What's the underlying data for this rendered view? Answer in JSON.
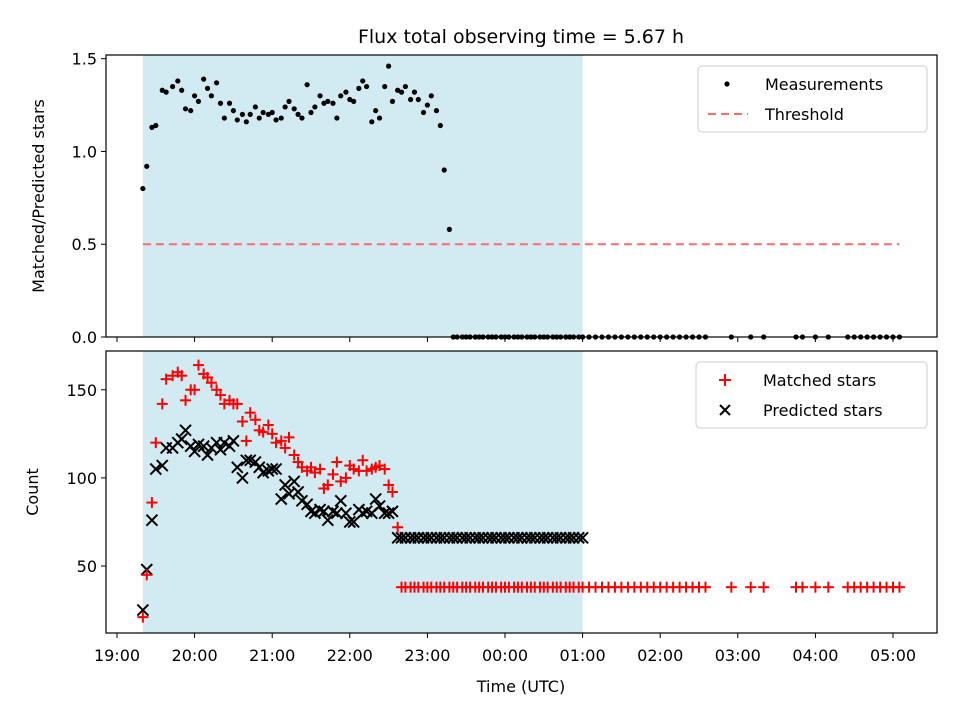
{
  "chart_data": {
    "type": "scatter",
    "title": "Flux total observing time = 5.67 h",
    "xlabel": "Time (UTC)",
    "x_tick_labels": [
      "19:00",
      "20:00",
      "21:00",
      "22:00",
      "23:00",
      "00:00",
      "01:00",
      "02:00",
      "03:00",
      "04:00",
      "05:00"
    ],
    "shaded_interval": {
      "start": "19:20",
      "end": "01:00",
      "color": "#add8e6"
    },
    "top_panel": {
      "ylabel": "Matched/Predicted stars",
      "ylim": [
        0,
        1.52
      ],
      "yticks": [
        "0.0",
        "0.5",
        "1.0",
        "1.5"
      ],
      "legend": {
        "placement": "top-right",
        "entries": [
          "Measurements",
          "Threshold"
        ]
      },
      "threshold": {
        "name": "Threshold",
        "value": 0.5,
        "x_start": "19:20",
        "x_end": "05:05",
        "color": "#ff6b6b",
        "style": "dashed"
      },
      "measurements": {
        "name": "Measurements",
        "color": "#000000",
        "x": [
          "19:20",
          "19:23",
          "19:27",
          "19:30",
          "19:35",
          "19:38",
          "19:43",
          "19:47",
          "19:50",
          "19:53",
          "19:57",
          "20:00",
          "20:03",
          "20:07",
          "20:10",
          "20:13",
          "20:17",
          "20:20",
          "20:23",
          "20:27",
          "20:30",
          "20:33",
          "20:37",
          "20:40",
          "20:43",
          "20:47",
          "20:50",
          "20:53",
          "20:57",
          "21:00",
          "21:03",
          "21:07",
          "21:10",
          "21:13",
          "21:17",
          "21:20",
          "21:23",
          "21:27",
          "21:30",
          "21:33",
          "21:37",
          "21:40",
          "21:43",
          "21:47",
          "21:50",
          "21:53",
          "21:57",
          "22:00",
          "22:03",
          "22:07",
          "22:10",
          "22:13",
          "22:17",
          "22:20",
          "22:23",
          "22:27",
          "22:30",
          "22:33",
          "22:37",
          "22:40",
          "22:43",
          "22:47",
          "22:50",
          "22:53",
          "22:57",
          "23:00",
          "23:03",
          "23:07",
          "23:10",
          "23:13",
          "23:17",
          "23:20",
          "23:23",
          "23:27",
          "23:30",
          "23:33",
          "23:37",
          "23:40",
          "23:43",
          "23:47",
          "23:50",
          "23:53",
          "23:57",
          "00:00",
          "00:03",
          "00:07",
          "00:10",
          "00:13",
          "00:17",
          "00:20",
          "00:23",
          "00:27",
          "00:30",
          "00:33",
          "00:37",
          "00:40",
          "00:43",
          "00:47",
          "00:50",
          "00:53",
          "00:57",
          "01:00"
        ],
        "y": [
          0.8,
          0.92,
          1.13,
          1.14,
          1.33,
          1.32,
          1.35,
          1.38,
          1.33,
          1.23,
          1.22,
          1.3,
          1.27,
          1.39,
          1.34,
          1.3,
          1.37,
          1.26,
          1.18,
          1.26,
          1.22,
          1.17,
          1.2,
          1.16,
          1.2,
          1.24,
          1.18,
          1.21,
          1.2,
          1.21,
          1.17,
          1.18,
          1.24,
          1.27,
          1.23,
          1.2,
          1.18,
          1.36,
          1.21,
          1.24,
          1.3,
          1.26,
          1.27,
          1.26,
          1.18,
          1.3,
          1.32,
          1.28,
          1.27,
          1.34,
          1.38,
          1.35,
          1.16,
          1.22,
          1.18,
          1.35,
          1.46,
          1.27,
          1.33,
          1.32,
          1.35,
          1.28,
          1.32,
          1.28,
          1.21,
          1.25,
          1.3,
          1.22,
          1.14,
          0.9,
          0.58,
          0.0,
          0.0,
          0.0,
          0.0,
          0.0,
          0.0,
          0.0,
          0.0,
          0.0,
          0.0,
          0.0,
          0.0,
          0.0,
          0.0,
          0.0,
          0.0,
          0.0,
          0.0,
          0.0,
          0.0,
          0.0,
          0.0,
          0.0,
          0.0,
          0.0,
          0.0,
          0.0,
          0.0,
          0.0,
          0.0,
          0.0
        ]
      }
    },
    "bottom_panel": {
      "ylabel": "Count",
      "ylim": [
        12,
        172
      ],
      "yticks": [
        "50",
        "100",
        "150"
      ],
      "legend": {
        "placement": "top-right",
        "entries": [
          "Matched stars",
          "Predicted stars"
        ]
      },
      "series": [
        {
          "name": "Matched stars",
          "marker": "+",
          "color": "#ff0000",
          "x": [
            "19:20",
            "19:23",
            "19:27",
            "19:30",
            "19:35",
            "19:38",
            "19:43",
            "19:47",
            "19:50",
            "19:53",
            "19:57",
            "20:00",
            "20:03",
            "20:07",
            "20:10",
            "20:13",
            "20:17",
            "20:20",
            "20:23",
            "20:27",
            "20:30",
            "20:33",
            "20:37",
            "20:40",
            "20:43",
            "20:47",
            "20:50",
            "20:53",
            "20:57",
            "21:00",
            "21:03",
            "21:07",
            "21:10",
            "21:13",
            "21:17",
            "21:20",
            "21:23",
            "21:27",
            "21:30",
            "21:33",
            "21:37",
            "21:40",
            "21:43",
            "21:47",
            "21:50",
            "21:53",
            "21:57",
            "22:00",
            "22:03",
            "22:07",
            "22:10",
            "22:13",
            "22:17",
            "22:20",
            "22:23",
            "22:27",
            "22:30",
            "22:33",
            "22:37",
            "22:40",
            "22:43",
            "22:47",
            "22:50",
            "22:53",
            "22:57",
            "23:00",
            "23:03",
            "23:07",
            "23:10",
            "23:13",
            "23:17",
            "23:20",
            "23:23",
            "23:27",
            "23:30",
            "23:33",
            "23:37",
            "23:40",
            "23:43",
            "23:47",
            "23:50",
            "23:53",
            "23:57",
            "00:00",
            "00:03",
            "00:07",
            "00:10",
            "00:13",
            "00:17",
            "00:20",
            "00:23",
            "00:27",
            "00:30",
            "00:33",
            "00:37",
            "00:40",
            "00:43",
            "00:47",
            "00:50",
            "00:53",
            "00:57",
            "01:00"
          ],
          "y": [
            21,
            45,
            86,
            120,
            142,
            156,
            158,
            160,
            158,
            144,
            150,
            150,
            164,
            159,
            157,
            154,
            150,
            147,
            142,
            144,
            142,
            142,
            132,
            121,
            137,
            133,
            127,
            126,
            130,
            125,
            120,
            121,
            117,
            123,
            113,
            109,
            106,
            104,
            106,
            103,
            105,
            94,
            96,
            102,
            109,
            98,
            100,
            107,
            105,
            104,
            110,
            104,
            105,
            106,
            107,
            105,
            96,
            92,
            72,
            38,
            38,
            38,
            38,
            38,
            38,
            38,
            38,
            38,
            38,
            38,
            38,
            38,
            38,
            38,
            38,
            38,
            38,
            38,
            38,
            38,
            38,
            38,
            38,
            38,
            38,
            38,
            38,
            38,
            38,
            38,
            38,
            38,
            38,
            38,
            38,
            38,
            38,
            38,
            38,
            38,
            38,
            38
          ]
        },
        {
          "name": "Predicted stars",
          "marker": "x",
          "color": "#000000",
          "x": [
            "19:20",
            "19:23",
            "19:27",
            "19:30",
            "19:35",
            "19:38",
            "19:43",
            "19:47",
            "19:50",
            "19:53",
            "19:57",
            "20:00",
            "20:03",
            "20:07",
            "20:10",
            "20:13",
            "20:17",
            "20:20",
            "20:23",
            "20:27",
            "20:30",
            "20:33",
            "20:37",
            "20:40",
            "20:43",
            "20:47",
            "20:50",
            "20:53",
            "20:57",
            "21:00",
            "21:03",
            "21:07",
            "21:10",
            "21:13",
            "21:17",
            "21:20",
            "21:23",
            "21:27",
            "21:30",
            "21:33",
            "21:37",
            "21:40",
            "21:43",
            "21:47",
            "21:50",
            "21:53",
            "21:57",
            "22:00",
            "22:03",
            "22:07",
            "22:10",
            "22:13",
            "22:17",
            "22:20",
            "22:23",
            "22:27",
            "22:30",
            "22:33",
            "22:37",
            "22:40",
            "22:43",
            "22:47",
            "22:50",
            "22:53",
            "22:57",
            "23:00",
            "23:03",
            "23:07",
            "23:10",
            "23:13",
            "23:17",
            "23:20",
            "23:23",
            "23:27",
            "23:30",
            "23:33",
            "23:37",
            "23:40",
            "23:43",
            "23:47",
            "23:50",
            "23:53",
            "23:57",
            "00:00",
            "00:03",
            "00:07",
            "00:10",
            "00:13",
            "00:17",
            "00:20",
            "00:23",
            "00:27",
            "00:30",
            "00:33",
            "00:37",
            "00:40",
            "00:43",
            "00:47",
            "00:50",
            "00:53",
            "00:57",
            "01:00"
          ],
          "y": [
            25,
            48,
            76,
            105,
            107,
            117,
            117,
            120,
            122,
            127,
            118,
            115,
            119,
            118,
            113,
            117,
            120,
            116,
            120,
            118,
            121,
            106,
            100,
            110,
            110,
            109,
            106,
            103,
            104,
            105,
            105,
            88,
            96,
            91,
            98,
            92,
            87,
            85,
            81,
            80,
            82,
            81,
            76,
            81,
            80,
            87,
            80,
            75,
            75,
            82,
            80,
            81,
            80,
            88,
            84,
            80,
            80,
            81,
            66,
            66,
            66,
            66,
            66,
            66,
            66,
            66,
            66,
            66,
            66,
            66,
            66,
            66,
            66,
            66,
            66,
            66,
            66,
            66,
            66,
            66,
            66,
            66,
            66,
            66,
            66,
            66,
            66,
            66,
            66,
            66,
            66,
            66,
            66,
            66,
            66,
            66,
            66,
            66,
            66,
            66,
            66,
            66
          ]
        }
      ]
    }
  }
}
